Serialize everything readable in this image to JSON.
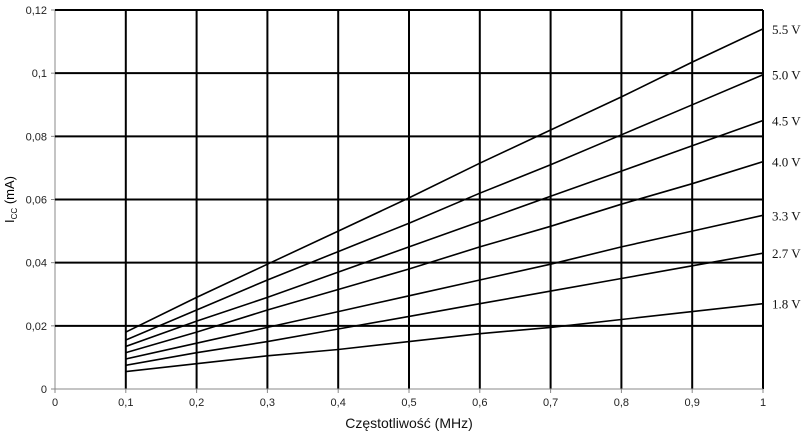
{
  "chart_data": {
    "type": "line",
    "title": "",
    "xlabel": "Częstotliwość (MHz)",
    "ylabel_prefix": "I",
    "ylabel_sub": "CC",
    "ylabel_suffix": " (mA)",
    "xlim": [
      0,
      1
    ],
    "ylim": [
      0,
      0.12
    ],
    "x_ticks": [
      0,
      0.1,
      0.2,
      0.3,
      0.4,
      0.5,
      0.6,
      0.7,
      0.8,
      0.9,
      1
    ],
    "x_tick_labels": [
      "0",
      "0,1",
      "0,2",
      "0,3",
      "0,4",
      "0,5",
      "0,6",
      "0,7",
      "0,8",
      "0,9",
      "1"
    ],
    "y_ticks": [
      0,
      0.02,
      0.04,
      0.06,
      0.08,
      0.1,
      0.12
    ],
    "y_tick_labels": [
      "0",
      "0,02",
      "0,04",
      "0,06",
      "0,08",
      "0,1",
      "0,12"
    ],
    "grid": true,
    "legend": "right-end labels",
    "line_color": "#000000",
    "series": [
      {
        "name": "5.5 V",
        "x": [
          0.1,
          0.2,
          0.3,
          0.4,
          0.5,
          0.6,
          0.7,
          0.8,
          0.9,
          1.0
        ],
        "values": [
          0.018,
          0.029,
          0.0395,
          0.05,
          0.0605,
          0.0715,
          0.082,
          0.0925,
          0.1035,
          0.114
        ]
      },
      {
        "name": "5.0 V",
        "x": [
          0.1,
          0.2,
          0.3,
          0.4,
          0.5,
          0.6,
          0.7,
          0.8,
          0.9,
          1.0
        ],
        "values": [
          0.0155,
          0.025,
          0.0345,
          0.0435,
          0.0525,
          0.062,
          0.071,
          0.0805,
          0.09,
          0.0995
        ]
      },
      {
        "name": "4.5 V",
        "x": [
          0.1,
          0.2,
          0.3,
          0.4,
          0.5,
          0.6,
          0.7,
          0.8,
          0.9,
          1.0
        ],
        "values": [
          0.0135,
          0.0215,
          0.029,
          0.037,
          0.045,
          0.053,
          0.061,
          0.069,
          0.077,
          0.085
        ]
      },
      {
        "name": "4.0 V",
        "x": [
          0.1,
          0.2,
          0.3,
          0.4,
          0.5,
          0.6,
          0.7,
          0.8,
          0.9,
          1.0
        ],
        "values": [
          0.0115,
          0.018,
          0.025,
          0.0315,
          0.038,
          0.045,
          0.0515,
          0.0585,
          0.065,
          0.072
        ]
      },
      {
        "name": "3.3 V",
        "x": [
          0.1,
          0.2,
          0.3,
          0.4,
          0.5,
          0.6,
          0.7,
          0.8,
          0.9,
          1.0
        ],
        "values": [
          0.0095,
          0.0145,
          0.0195,
          0.0245,
          0.0295,
          0.0345,
          0.0395,
          0.045,
          0.05,
          0.055
        ]
      },
      {
        "name": "2.7 V",
        "x": [
          0.1,
          0.2,
          0.3,
          0.4,
          0.5,
          0.6,
          0.7,
          0.8,
          0.9,
          1.0
        ],
        "values": [
          0.0075,
          0.0115,
          0.015,
          0.019,
          0.023,
          0.027,
          0.031,
          0.035,
          0.039,
          0.043
        ]
      },
      {
        "name": "1.8 V",
        "x": [
          0.1,
          0.2,
          0.3,
          0.4,
          0.5,
          0.6,
          0.7,
          0.8,
          0.9,
          1.0
        ],
        "values": [
          0.0055,
          0.008,
          0.0105,
          0.0125,
          0.015,
          0.0175,
          0.0195,
          0.022,
          0.0245,
          0.027
        ]
      }
    ]
  }
}
